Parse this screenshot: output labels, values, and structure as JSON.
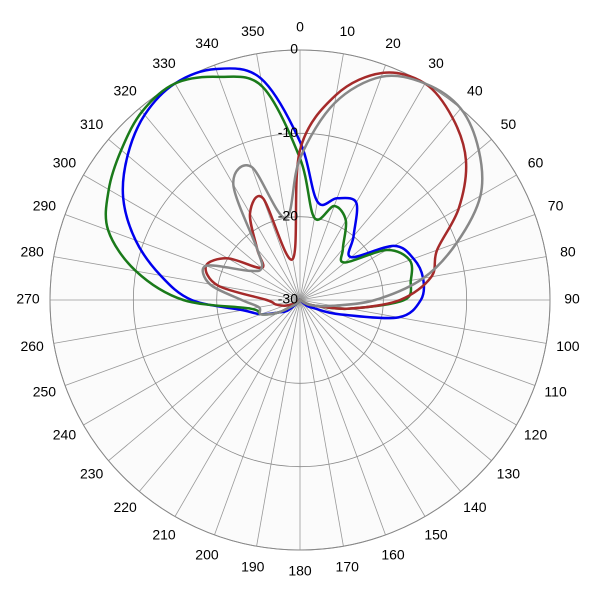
{
  "chart_data": {
    "type": "polar",
    "categories": [
      0,
      10,
      20,
      30,
      40,
      50,
      60,
      70,
      80,
      90,
      100,
      110,
      120,
      130,
      140,
      150,
      160,
      170,
      180,
      190,
      200,
      210,
      220,
      230,
      240,
      250,
      260,
      270,
      280,
      290,
      300,
      310,
      320,
      330,
      340,
      350
    ],
    "ylim": [
      -30,
      0
    ],
    "yticks": [
      -30,
      -20,
      -10,
      0
    ],
    "grid": true,
    "series": [
      {
        "color": "#0000ee",
        "values": [
          -11,
          -18,
          -17,
          -16.5,
          -20,
          -22,
          -17,
          -15.5,
          -15,
          -15.5,
          -18,
          -25,
          -28,
          -29,
          -30,
          -30,
          -30,
          -30,
          -30,
          -30,
          -30,
          -30,
          -29.5,
          -28,
          -27,
          -25,
          -23,
          -17,
          -13,
          -9,
          -5.5,
          -3,
          -1,
          0,
          -0.5,
          -3
        ]
      },
      {
        "color": "#1a7a1a",
        "values": [
          -13,
          -20,
          -18,
          -19,
          -22,
          -23,
          -18,
          -16,
          -16.5,
          -17.5,
          -24,
          -28,
          -29,
          -30,
          -30,
          -30,
          -30,
          -30,
          -30,
          -30,
          -30,
          -30,
          -29.5,
          -29,
          -27,
          -25,
          -24,
          -16,
          -10,
          -5.5,
          -3.5,
          -2,
          -0.5,
          0,
          -1.5,
          -4
        ]
      },
      {
        "color": "#a52a2a",
        "values": [
          -12,
          -5,
          -1,
          0,
          -1.5,
          -4,
          -8,
          -12.5,
          -14,
          -18,
          -24,
          -28,
          -29,
          -30,
          -30,
          -30,
          -30,
          -30,
          -30,
          -30,
          -30,
          -30,
          -30,
          -29.5,
          -29,
          -28,
          -27,
          -26,
          -20,
          -18,
          -20,
          -24,
          -22,
          -18,
          -17,
          -25
        ]
      },
      {
        "color": "#888888",
        "values": [
          -13,
          -6,
          -1.5,
          0,
          0,
          -2,
          -5,
          -10,
          -15,
          -21,
          -26,
          -28,
          -29,
          -30,
          -30,
          -30,
          -30,
          -30,
          -30,
          -30,
          -30,
          -30,
          -29.5,
          -29,
          -27,
          -25,
          -25,
          -23,
          -19,
          -18,
          -23,
          -24,
          -22,
          -14,
          -13,
          -20
        ]
      }
    ]
  }
}
